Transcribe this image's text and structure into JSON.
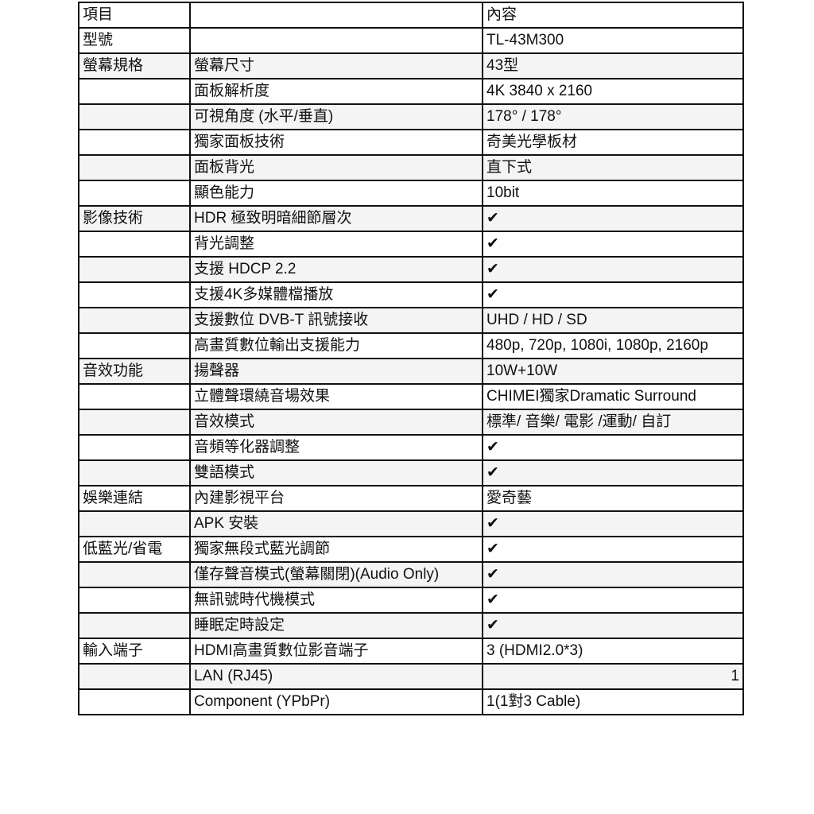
{
  "rows": [
    {
      "category": "項目",
      "item": "",
      "value": ""
    },
    {
      "category": "型號",
      "item": "",
      "value": "TL-43M300"
    },
    {
      "category": "螢幕規格",
      "item": "螢幕尺寸",
      "value": "43型"
    },
    {
      "category": "",
      "item": "面板解析度",
      "value": "4K 3840 x 2160"
    },
    {
      "category": "",
      "item": "可視角度 (水平/垂直)",
      "value": "178° / 178°"
    },
    {
      "category": "",
      "item": "獨家面板技術",
      "value": "奇美光學板材"
    },
    {
      "category": "",
      "item": "面板背光",
      "value": "直下式"
    },
    {
      "category": "",
      "item": "顯色能力",
      "value": "10bit"
    },
    {
      "category": "影像技術",
      "item": "HDR 極致明暗細節層次",
      "value": "✔"
    },
    {
      "category": "",
      "item": "背光調整",
      "value": "✔"
    },
    {
      "category": "",
      "item": "支援 HDCP 2.2",
      "value": "✔"
    },
    {
      "category": "",
      "item": "支援4K多媒體檔播放",
      "value": "✔"
    },
    {
      "category": "",
      "item": "支援數位 DVB-T 訊號接收",
      "value": "UHD / HD / SD"
    },
    {
      "category": "",
      "item": "高畫質數位輸出支援能力",
      "value": "480p, 720p, 1080i, 1080p, 2160p"
    },
    {
      "category": "音效功能",
      "item": "揚聲器",
      "value": "10W+10W"
    },
    {
      "category": "",
      "item": "立體聲環繞音場效果",
      "value": "CHIMEI獨家Dramatic Surround"
    },
    {
      "category": "",
      "item": "音效模式",
      "value": "標準/ 音樂/ 電影 /運動/ 自訂"
    },
    {
      "category": "",
      "item": "音頻等化器調整",
      "value": "✔"
    },
    {
      "category": "",
      "item": "雙語模式",
      "value": "✔"
    },
    {
      "category": "娛樂連結",
      "item": "內建影視平台",
      "value": "愛奇藝"
    },
    {
      "category": "",
      "item": "APK 安裝",
      "value": "✔"
    },
    {
      "category": "低藍光/省電",
      "item": "獨家無段式藍光調節",
      "value": "✔"
    },
    {
      "category": "",
      "item": "僅存聲音模式(螢幕關閉)(Audio Only)",
      "value": "✔"
    },
    {
      "category": "",
      "item": "無訊號時代機模式",
      "value": "✔"
    },
    {
      "category": "",
      "item": "睡眠定時設定",
      "value": "✔"
    },
    {
      "category": "輸入端子",
      "item": "HDMI高畫質數位影音端子",
      "value": "3 (HDMI2.0*3)"
    },
    {
      "category": "",
      "item": "LAN (RJ45)",
      "value": "1",
      "align": "right"
    },
    {
      "category": "",
      "item": "Component (YPbPr)",
      "value": "1(1對3 Cable)"
    }
  ],
  "header_value_label": "內容"
}
